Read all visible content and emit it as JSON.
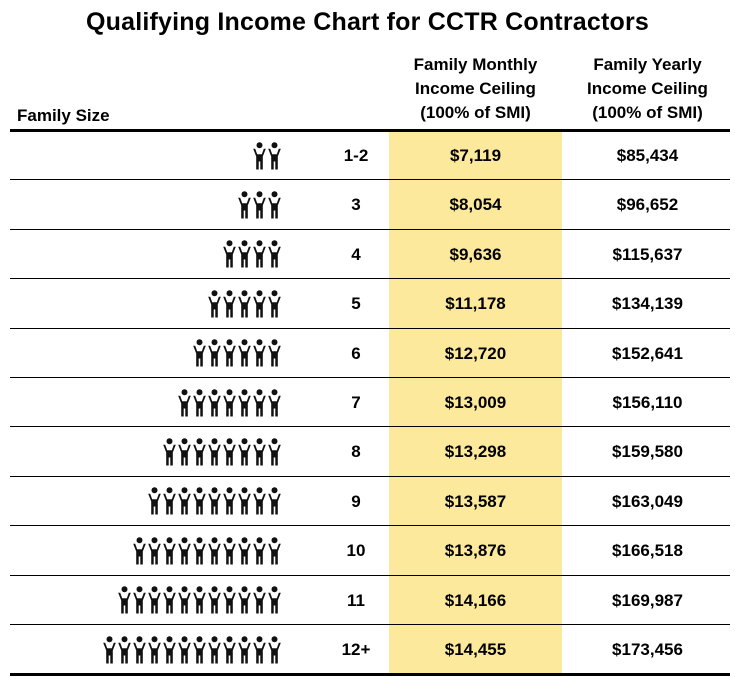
{
  "title": "Qualifying Income Chart for CCTR Contractors",
  "colors": {
    "highlight": "#fde99b",
    "rule": "#000000",
    "icon": "#111111"
  },
  "headers": {
    "family_size": "Family Size",
    "monthly": [
      "Family Monthly",
      "Income Ceiling",
      "(100% of SMI)"
    ],
    "yearly": [
      "Family Yearly",
      "Income Ceiling",
      "(100% of SMI)"
    ]
  },
  "icon_name": "person-arms-raised-icon",
  "chart_data": {
    "type": "table",
    "title": "Qualifying Income Chart for CCTR Contractors",
    "columns": [
      "Family Size",
      "Family Monthly Income Ceiling (100% of SMI)",
      "Family Yearly Income Ceiling (100% of SMI)"
    ],
    "rows": [
      {
        "size": "1-2",
        "people": 2,
        "monthly": "$7,119",
        "yearly": "$85,434"
      },
      {
        "size": "3",
        "people": 3,
        "monthly": "$8,054",
        "yearly": "$96,652"
      },
      {
        "size": "4",
        "people": 4,
        "monthly": "$9,636",
        "yearly": "$115,637"
      },
      {
        "size": "5",
        "people": 5,
        "monthly": "$11,178",
        "yearly": "$134,139"
      },
      {
        "size": "6",
        "people": 6,
        "monthly": "$12,720",
        "yearly": "$152,641"
      },
      {
        "size": "7",
        "people": 7,
        "monthly": "$13,009",
        "yearly": "$156,110"
      },
      {
        "size": "8",
        "people": 8,
        "monthly": "$13,298",
        "yearly": "$159,580"
      },
      {
        "size": "9",
        "people": 9,
        "monthly": "$13,587",
        "yearly": "$163,049"
      },
      {
        "size": "10",
        "people": 10,
        "monthly": "$13,876",
        "yearly": "$166,518"
      },
      {
        "size": "11",
        "people": 11,
        "monthly": "$14,166",
        "yearly": "$169,987"
      },
      {
        "size": "12+",
        "people": 12,
        "monthly": "$14,455",
        "yearly": "$173,456"
      }
    ]
  }
}
